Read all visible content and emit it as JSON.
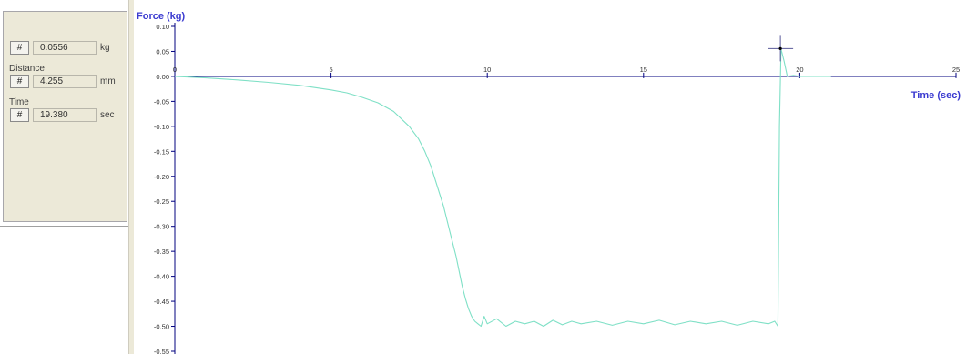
{
  "readout": {
    "force_button": "#",
    "force_value": "0.0556",
    "force_unit": "kg",
    "distance_label": "Distance",
    "distance_button": "#",
    "distance_value": "4.255",
    "distance_unit": "mm",
    "time_label": "Time",
    "time_button": "#",
    "time_value": "19.380",
    "time_unit": "sec"
  },
  "colors": {
    "axis": "#00007f",
    "axis_label": "#3a3ad0",
    "trace": "#7fe0c6",
    "cursor": "#5a5a9a",
    "panel_bg": "#ece9d8"
  },
  "chart_data": {
    "type": "line",
    "ylabel": "Force (kg)",
    "xlabel": "Time (sec)",
    "xlim": [
      0,
      25
    ],
    "ylim": [
      -0.55,
      0.1
    ],
    "x_ticks": [
      0,
      5,
      10,
      15,
      20,
      25
    ],
    "y_ticks": [
      0.1,
      0.05,
      0.0,
      -0.05,
      -0.1,
      -0.15,
      -0.2,
      -0.25,
      -0.3,
      -0.35,
      -0.4,
      -0.45,
      -0.5,
      -0.55
    ],
    "y_tick_labels": [
      "0.10",
      "0.05",
      "0.00",
      "-0.05",
      "-0.10",
      "-0.15",
      "-0.20",
      "-0.25",
      "-0.30",
      "-0.35",
      "-0.40",
      "-0.45",
      "-0.50",
      "-0.55"
    ],
    "cursor": {
      "x": 19.38,
      "y": 0.0556
    },
    "series": [
      {
        "x": [
          0,
          1,
          2,
          3,
          4,
          5,
          5.5,
          6,
          6.5,
          7,
          7.5,
          7.8,
          8.0,
          8.2,
          8.4,
          8.6,
          8.8,
          9.0,
          9.1,
          9.2,
          9.3,
          9.4,
          9.5,
          9.6,
          9.7,
          9.8,
          9.9,
          10.0,
          10.3,
          10.6,
          10.9,
          11.2,
          11.5,
          11.8,
          12.1,
          12.4,
          12.7,
          13.0,
          13.5,
          14.0,
          14.5,
          15.0,
          15.5,
          16.0,
          16.5,
          17.0,
          17.5,
          18.0,
          18.5,
          19.0,
          19.2,
          19.3,
          19.35,
          19.4,
          19.5,
          19.6,
          19.8,
          20.0,
          20.5,
          21.0
        ],
        "y": [
          0.0,
          -0.003,
          -0.007,
          -0.012,
          -0.018,
          -0.027,
          -0.033,
          -0.042,
          -0.053,
          -0.07,
          -0.1,
          -0.125,
          -0.15,
          -0.18,
          -0.22,
          -0.26,
          -0.31,
          -0.36,
          -0.39,
          -0.42,
          -0.445,
          -0.465,
          -0.48,
          -0.49,
          -0.495,
          -0.5,
          -0.48,
          -0.495,
          -0.485,
          -0.5,
          -0.49,
          -0.495,
          -0.49,
          -0.5,
          -0.488,
          -0.497,
          -0.49,
          -0.495,
          -0.49,
          -0.498,
          -0.49,
          -0.495,
          -0.488,
          -0.497,
          -0.49,
          -0.495,
          -0.49,
          -0.498,
          -0.49,
          -0.495,
          -0.49,
          -0.5,
          -0.1,
          0.055,
          0.03,
          0.0,
          0.002,
          0.0,
          0.0,
          0.0
        ]
      }
    ]
  }
}
